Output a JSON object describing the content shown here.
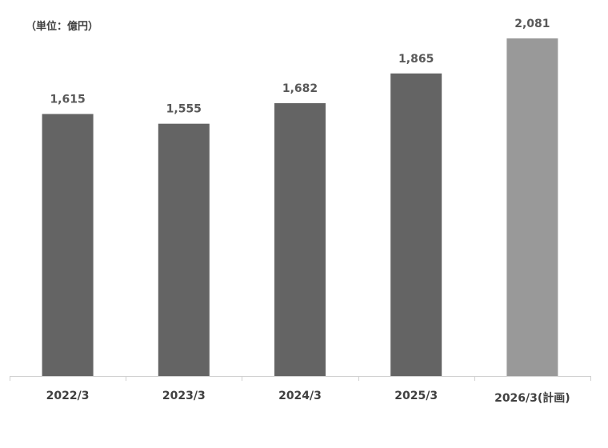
{
  "unit_label": "（単位：億円）",
  "chart_data": {
    "type": "bar",
    "categories": [
      "2022/3",
      "2023/3",
      "2024/3",
      "2025/3",
      "2026/3(計画)"
    ],
    "values": [
      1615,
      1555,
      1682,
      1865,
      2081
    ],
    "data_labels": [
      "1,615",
      "1,555",
      "1,682",
      "1,865",
      "2,081"
    ],
    "ylim": [
      0,
      2081
    ],
    "grid": false,
    "colors": [
      "#646464",
      "#646464",
      "#646464",
      "#646464",
      "#999999"
    ]
  }
}
